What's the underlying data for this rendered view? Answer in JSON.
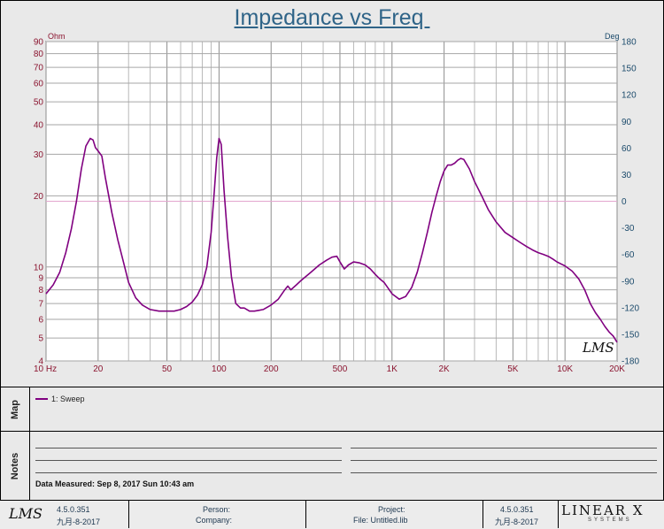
{
  "title": "Impedance vs Freq ",
  "watermark": "LMS",
  "left_axis_unit": "Ohm",
  "right_axis_unit": "Deg",
  "chart_data": {
    "type": "line",
    "title": "Impedance vs Freq",
    "x_scale": "log",
    "xlim": [
      10,
      20000
    ],
    "ylim_left": [
      4,
      90
    ],
    "y_scale_left": "log",
    "ylim_right": [
      -180,
      180
    ],
    "x_ticks": [
      {
        "v": 10,
        "label": "10  Hz"
      },
      {
        "v": 20,
        "label": "20"
      },
      {
        "v": 50,
        "label": "50"
      },
      {
        "v": 100,
        "label": "100"
      },
      {
        "v": 200,
        "label": "200"
      },
      {
        "v": 500,
        "label": "500"
      },
      {
        "v": 1000,
        "label": "1K"
      },
      {
        "v": 2000,
        "label": "2K"
      },
      {
        "v": 5000,
        "label": "5K"
      },
      {
        "v": 10000,
        "label": "10K"
      },
      {
        "v": 20000,
        "label": "20K"
      }
    ],
    "y_ticks_left": [
      {
        "v": 4,
        "label": "4"
      },
      {
        "v": 5,
        "label": "5"
      },
      {
        "v": 6,
        "label": "6"
      },
      {
        "v": 7,
        "label": "7"
      },
      {
        "v": 8,
        "label": "8"
      },
      {
        "v": 9,
        "label": "9"
      },
      {
        "v": 10,
        "label": "10"
      },
      {
        "v": 20,
        "label": "20"
      },
      {
        "v": 30,
        "label": "30"
      },
      {
        "v": 40,
        "label": "40"
      },
      {
        "v": 50,
        "label": "50"
      },
      {
        "v": 60,
        "label": "60"
      },
      {
        "v": 70,
        "label": "70"
      },
      {
        "v": 80,
        "label": "80"
      },
      {
        "v": 90,
        "label": "90"
      }
    ],
    "y_ticks_right": [
      {
        "v": -180,
        "label": "-180"
      },
      {
        "v": -150,
        "label": "-150"
      },
      {
        "v": -120,
        "label": "-120"
      },
      {
        "v": -90,
        "label": "-90"
      },
      {
        "v": -60,
        "label": "-60"
      },
      {
        "v": -30,
        "label": "-30"
      },
      {
        "v": 0,
        "label": "0"
      },
      {
        "v": 30,
        "label": "30"
      },
      {
        "v": 60,
        "label": "60"
      },
      {
        "v": 90,
        "label": "90"
      },
      {
        "v": 120,
        "label": "120"
      },
      {
        "v": 150,
        "label": "150"
      },
      {
        "v": 180,
        "label": "180"
      }
    ],
    "reference_line": {
      "axis": "right",
      "value": 0,
      "color": "#e3a6cf"
    },
    "series": [
      {
        "name": "1: Sweep",
        "color": "#800080",
        "axis": "left",
        "x": [
          10,
          11,
          12,
          13,
          14,
          15,
          16,
          17,
          18,
          18.7,
          19.3,
          20,
          21,
          22,
          24,
          26,
          28,
          30,
          33,
          36,
          40,
          45,
          50,
          55,
          60,
          65,
          70,
          75,
          80,
          85,
          90,
          94,
          97,
          100,
          103,
          107,
          112,
          118,
          125,
          133,
          140,
          150,
          160,
          170,
          180,
          200,
          220,
          240,
          250,
          260,
          280,
          300,
          340,
          380,
          420,
          450,
          480,
          500,
          530,
          560,
          600,
          650,
          700,
          750,
          800,
          850,
          900,
          1000,
          1100,
          1200,
          1300,
          1400,
          1500,
          1600,
          1700,
          1800,
          1900,
          2000,
          2100,
          2200,
          2300,
          2400,
          2500,
          2600,
          2800,
          3000,
          3300,
          3600,
          4000,
          4500,
          5000,
          5500,
          6000,
          6500,
          7000,
          7500,
          8000,
          8500,
          9000,
          10000,
          11000,
          12000,
          13000,
          14000,
          15000,
          16000,
          17000,
          18000,
          19000,
          20000
        ],
        "y": [
          7.7,
          8.4,
          9.5,
          11.5,
          14.5,
          19,
          26,
          32.5,
          35,
          34.5,
          32,
          31,
          29.5,
          24,
          17,
          13,
          10.5,
          8.6,
          7.4,
          6.9,
          6.6,
          6.5,
          6.5,
          6.5,
          6.6,
          6.8,
          7.1,
          7.6,
          8.4,
          10.0,
          14,
          21,
          29,
          35,
          33,
          21,
          13.5,
          9.1,
          7.0,
          6.7,
          6.7,
          6.5,
          6.5,
          6.55,
          6.6,
          6.9,
          7.3,
          8.0,
          8.3,
          8.0,
          8.4,
          8.8,
          9.5,
          10.2,
          10.7,
          11.0,
          11.1,
          10.5,
          9.8,
          10.2,
          10.5,
          10.4,
          10.2,
          9.8,
          9.3,
          8.9,
          8.6,
          7.7,
          7.3,
          7.5,
          8.2,
          9.5,
          11.5,
          14,
          17,
          20,
          23,
          25.5,
          27,
          27,
          27.5,
          28.3,
          28.8,
          28.5,
          26,
          23,
          20,
          17.5,
          15.5,
          14,
          13.3,
          12.7,
          12.2,
          11.8,
          11.5,
          11.3,
          11.1,
          10.8,
          10.5,
          10.1,
          9.6,
          8.9,
          8.0,
          7.0,
          6.4,
          6.0,
          5.6,
          5.3,
          5.1,
          4.8
        ]
      }
    ]
  },
  "map": {
    "tab_label": "Map",
    "legend": [
      {
        "label": "1: Sweep",
        "color": "#800080"
      }
    ]
  },
  "notes": {
    "tab_label": "Notes",
    "data_measured": "Data Measured: Sep 8, 2017 Sun 10:43 am"
  },
  "footer": {
    "logo": "LMS",
    "version_left": "4.5.0.351",
    "date_left": "九月-8-2017",
    "person_label": "Person:",
    "company_label": "Company:",
    "project_label": "Project:",
    "file_label": "File: Untitled.lib",
    "version_right": "4.5.0.351",
    "date_right": "九月-8-2017",
    "brand": "LINEAR X",
    "brand_sub": "SYSTEMS"
  }
}
